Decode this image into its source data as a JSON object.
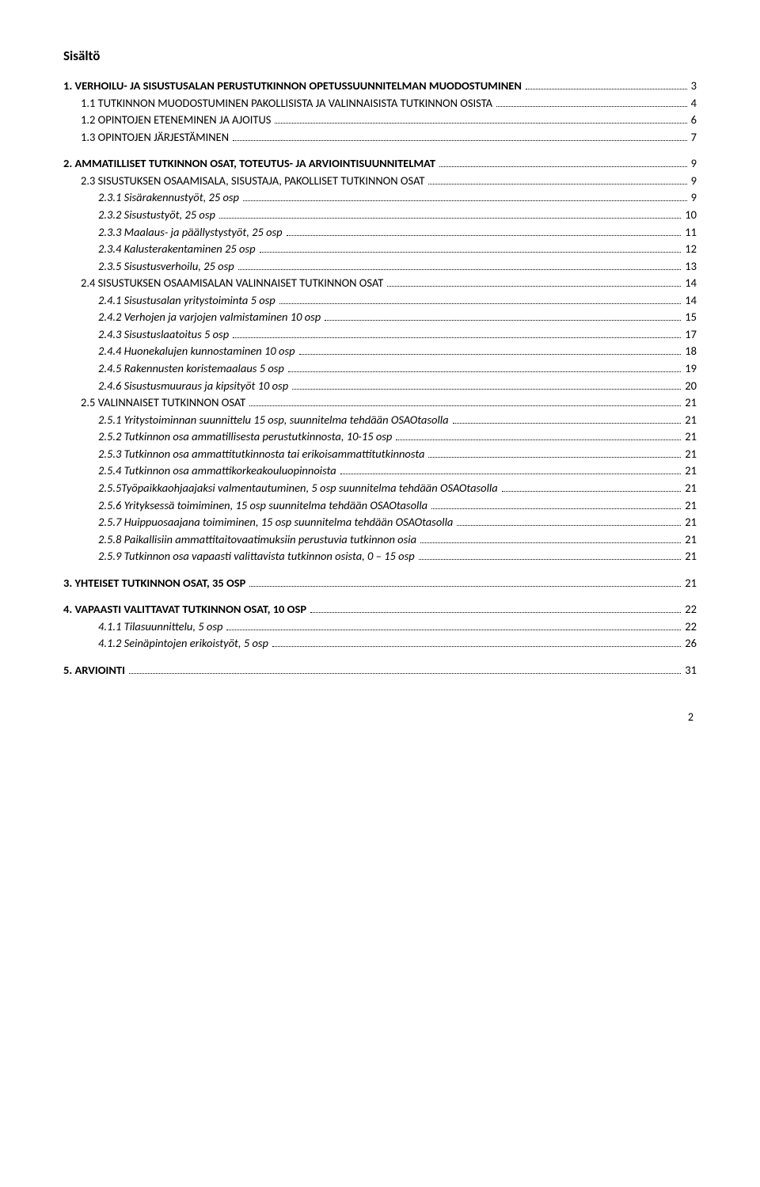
{
  "title": "Sisältö",
  "footer_page_number": "2",
  "fonts": {
    "body_pt": 14.5,
    "title_pt": 17
  },
  "colors": {
    "text": "#000000",
    "background": "#ffffff"
  },
  "toc": [
    {
      "label": "1. VERHOILU- JA SISUSTUSALAN PERUSTUTKINNON OPETUSSUUNNITELMAN MUODOSTUMINEN",
      "page": "3",
      "indent": 0,
      "bold": true,
      "italic": false,
      "gap": false
    },
    {
      "label": "1.1 TUTKINNON MUODOSTUMINEN PAKOLLISISTA JA VALINNAISISTA TUTKINNON OSISTA",
      "page": "4",
      "indent": 1,
      "bold": false,
      "italic": false,
      "gap": false,
      "smallcaps": true
    },
    {
      "label": "1.2 OPINTOJEN ETENEMINEN JA AJOITUS",
      "page": "6",
      "indent": 1,
      "bold": false,
      "italic": false,
      "gap": false,
      "smallcaps": true
    },
    {
      "label": "1.3 OPINTOJEN JÄRJESTÄMINEN",
      "page": "7",
      "indent": 1,
      "bold": false,
      "italic": false,
      "gap": false,
      "smallcaps": true
    },
    {
      "label": "2. AMMATILLISET TUTKINNON OSAT, TOTEUTUS- JA ARVIOINTISUUNNITELMAT",
      "page": "9",
      "indent": 0,
      "bold": true,
      "italic": false,
      "gap": true
    },
    {
      "label": "2.3 SISUSTUKSEN OSAAMISALA, SISUSTAJA, PAKOLLISET TUTKINNON OSAT",
      "page": "9",
      "indent": 1,
      "bold": false,
      "italic": false,
      "gap": false,
      "smallcaps": true
    },
    {
      "label": "2.3.1 Sisärakennustyöt, 25 osp",
      "page": "9",
      "indent": 2,
      "bold": false,
      "italic": true,
      "gap": false
    },
    {
      "label": "2.3.2 Sisustustyöt, 25 osp",
      "page": "10",
      "indent": 2,
      "bold": false,
      "italic": true,
      "gap": false
    },
    {
      "label": "2.3.3 Maalaus- ja päällystystyöt, 25 osp",
      "page": "11",
      "indent": 2,
      "bold": false,
      "italic": true,
      "gap": false
    },
    {
      "label": "2.3.4 Kalusterakentaminen 25 osp",
      "page": "12",
      "indent": 2,
      "bold": false,
      "italic": true,
      "gap": false
    },
    {
      "label": "2.3.5 Sisustusverhoilu, 25 osp",
      "page": "13",
      "indent": 2,
      "bold": false,
      "italic": true,
      "gap": false
    },
    {
      "label": "2.4 SISUSTUKSEN OSAAMISALAN VALINNAISET TUTKINNON OSAT",
      "page": "14",
      "indent": 1,
      "bold": false,
      "italic": false,
      "gap": false,
      "smallcaps": true
    },
    {
      "label": "2.4.1 Sisustusalan yritystoiminta 5 osp",
      "page": "14",
      "indent": 2,
      "bold": false,
      "italic": true,
      "gap": false
    },
    {
      "label": "2.4.2 Verhojen ja varjojen valmistaminen 10 osp",
      "page": "15",
      "indent": 2,
      "bold": false,
      "italic": true,
      "gap": false
    },
    {
      "label": "2.4.3 Sisustuslaatoitus 5 osp",
      "page": "17",
      "indent": 2,
      "bold": false,
      "italic": true,
      "gap": false
    },
    {
      "label": "2.4.4 Huonekalujen kunnostaminen 10 osp",
      "page": "18",
      "indent": 2,
      "bold": false,
      "italic": true,
      "gap": false
    },
    {
      "label": "2.4.5 Rakennusten koristemaalaus 5 osp",
      "page": "19",
      "indent": 2,
      "bold": false,
      "italic": true,
      "gap": false
    },
    {
      "label": "2.4.6 Sisustusmuuraus ja kipsityöt 10 osp",
      "page": "20",
      "indent": 2,
      "bold": false,
      "italic": true,
      "gap": false
    },
    {
      "label": "2.5 VALINNAISET TUTKINNON OSAT",
      "page": "21",
      "indent": 1,
      "bold": false,
      "italic": false,
      "gap": false,
      "smallcaps": true
    },
    {
      "label": "2.5.1 Yritystoiminnan suunnittelu 15 osp, suunnitelma tehdään OSAOtasolla",
      "page": "21",
      "indent": 2,
      "bold": false,
      "italic": true,
      "gap": false
    },
    {
      "label": "2.5.2 Tutkinnon osa ammatillisesta perustutkinnosta, 10-15 osp",
      "page": "21",
      "indent": 2,
      "bold": false,
      "italic": true,
      "gap": false
    },
    {
      "label": "2.5.3 Tutkinnon osa ammattitutkinnosta tai erikoisammattitutkinnosta",
      "page": "21",
      "indent": 2,
      "bold": false,
      "italic": true,
      "gap": false
    },
    {
      "label": "2.5.4 Tutkinnon osa ammattikorkeakouluopinnoista",
      "page": "21",
      "indent": 2,
      "bold": false,
      "italic": true,
      "gap": false
    },
    {
      "label": "2.5.5Työpaikkaohjaajaksi valmentautuminen, 5 osp suunnitelma tehdään OSAOtasolla",
      "page": "21",
      "indent": 2,
      "bold": false,
      "italic": true,
      "gap": false
    },
    {
      "label": "2.5.6 Yrityksessä toimiminen, 15 osp suunnitelma tehdään OSAOtasolla",
      "page": "21",
      "indent": 2,
      "bold": false,
      "italic": true,
      "gap": false
    },
    {
      "label": "2.5.7 Huippuosaajana toimiminen, 15 osp suunnitelma tehdään OSAOtasolla",
      "page": "21",
      "indent": 2,
      "bold": false,
      "italic": true,
      "gap": false
    },
    {
      "label": "2.5.8 Paikallisiin ammattitaitovaatimuksiin perustuvia tutkinnon osia",
      "page": "21",
      "indent": 2,
      "bold": false,
      "italic": true,
      "gap": false
    },
    {
      "label": "2.5.9 Tutkinnon osa vapaasti valittavista tutkinnon osista, 0 – 15 osp",
      "page": "21",
      "indent": 2,
      "bold": false,
      "italic": true,
      "gap": false
    },
    {
      "label": "3. YHTEISET TUTKINNON OSAT, 35 OSP",
      "page": "21",
      "indent": 0,
      "bold": true,
      "italic": false,
      "gap": true
    },
    {
      "label": "4. VAPAASTI VALITTAVAT TUTKINNON OSAT, 10 OSP",
      "page": "22",
      "indent": 0,
      "bold": true,
      "italic": false,
      "gap": true
    },
    {
      "label": "4.1.1 Tilasuunnittelu, 5 osp",
      "page": "22",
      "indent": 2,
      "bold": false,
      "italic": true,
      "gap": false
    },
    {
      "label": "4.1.2 Seinäpintojen erikoistyöt, 5 osp",
      "page": "26",
      "indent": 2,
      "bold": false,
      "italic": true,
      "gap": false
    },
    {
      "label": "5. ARVIOINTI",
      "page": "31",
      "indent": 0,
      "bold": true,
      "italic": false,
      "gap": true
    }
  ]
}
